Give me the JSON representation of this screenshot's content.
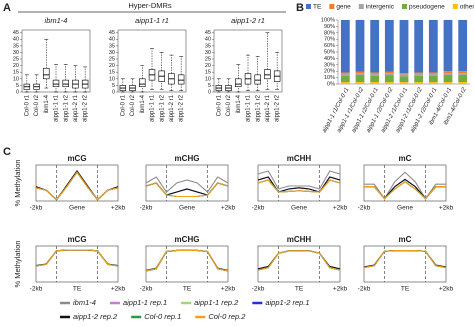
{
  "figure": {
    "panel_labels": [
      "A",
      "B",
      "C"
    ],
    "header": "Hyper-DMRs"
  },
  "line_legend": [
    {
      "name": "ibm1-4",
      "color": "#8c8c8c"
    },
    {
      "name": "aipp1-1 rep.1",
      "color": "#c77dcf"
    },
    {
      "name": "aipp1-1 rep.2",
      "color": "#9bd67a"
    },
    {
      "name": "aipp1-2 rep.1",
      "color": "#2234d0"
    },
    {
      "name": "aipp1-2 rep.2",
      "color": "#111111"
    },
    {
      "name": "Col-0 rep.1",
      "color": "#2a9a3a"
    },
    {
      "name": "Col-0 rep.2",
      "color": "#f0a020"
    }
  ],
  "chart_data": [
    {
      "type": "box",
      "title": "ibm1-4",
      "categories": [
        "Col-0 r1",
        "Col-0 r2",
        "ibm1-4",
        "aipp1-1 r1",
        "aipp1-1 r2",
        "aipp1-2 r1",
        "aipp1-2 r2"
      ],
      "values": [
        [
          0,
          2,
          4,
          6,
          13
        ],
        [
          0,
          2,
          4,
          6,
          13
        ],
        [
          3,
          10,
          13,
          18,
          40
        ],
        [
          0,
          4,
          6,
          9,
          21
        ],
        [
          0,
          4,
          6,
          9,
          21
        ],
        [
          0,
          3,
          6,
          9,
          20
        ],
        [
          0,
          3,
          6,
          9,
          19
        ]
      ],
      "ylim": [
        0,
        47
      ],
      "yticks": [
        0,
        5,
        10,
        15,
        20,
        25,
        30,
        35,
        40,
        45
      ],
      "color": "#000000"
    },
    {
      "type": "box",
      "title": "aipp1-1 r1",
      "categories": [
        "Col-0 r1",
        "Col-0 r2",
        "ibm1-4",
        "aipp1-1 r1",
        "aipp1-1 r2",
        "aipp1-2 r1",
        "aipp1-2 r2"
      ],
      "values": [
        [
          0,
          1,
          3,
          5,
          10
        ],
        [
          0,
          1,
          3,
          5,
          10
        ],
        [
          0,
          4,
          6,
          10,
          20
        ],
        [
          2,
          9,
          13,
          17,
          33
        ],
        [
          2,
          8,
          12,
          16,
          30
        ],
        [
          1,
          6,
          10,
          14,
          28
        ],
        [
          1,
          6,
          9,
          13,
          27
        ]
      ],
      "ylim": [
        0,
        47
      ],
      "yticks": [
        0,
        5,
        10,
        15,
        20,
        25,
        30,
        35,
        40,
        45
      ],
      "color": "#000000"
    },
    {
      "type": "box",
      "title": "aipp1-2 r1",
      "categories": [
        "Col-0 r1",
        "Col-0 r2",
        "ibm1-4",
        "aipp1-1 r1",
        "aipp1-1 r2",
        "aipp1-2 r1",
        "aipp1-2 r2"
      ],
      "values": [
        [
          0,
          1,
          3,
          5,
          10
        ],
        [
          0,
          1,
          3,
          5,
          10
        ],
        [
          0,
          4,
          6,
          10,
          21
        ],
        [
          1,
          6,
          10,
          14,
          28
        ],
        [
          1,
          6,
          9,
          13,
          27
        ],
        [
          2,
          10,
          13,
          17,
          45
        ],
        [
          2,
          8,
          12,
          16,
          30
        ]
      ],
      "ylim": [
        0,
        47
      ],
      "yticks": [
        0,
        5,
        10,
        15,
        20,
        25,
        30,
        35,
        40,
        45
      ],
      "color": "#000000"
    },
    {
      "type": "bar",
      "stacked": true,
      "legend": "top",
      "categories": [
        "aipp1-1 r1/Col-0 r1",
        "aipp1-1 r1/Col-0 r2",
        "aipp1-1 r2/Col-0 r1",
        "aipp1-1 r2/Col-0 r2",
        "aipp1-2 r1/Col-0 r1",
        "aipp1-2 r1/Col-0 r2",
        "aipp1-2 r2/Col-0 r1",
        "ibm1-4/Col-0 r1",
        "ibm1-4/Col-0 r2"
      ],
      "series": [
        {
          "name": "TE",
          "color": "#4472c4",
          "values": [
            82,
            81,
            82,
            81,
            83,
            82,
            82,
            80,
            80
          ]
        },
        {
          "name": "gene",
          "color": "#ed7d31",
          "values": [
            2,
            2,
            2,
            2,
            2,
            2,
            2,
            3,
            3
          ]
        },
        {
          "name": "intergenic",
          "color": "#a5a5a5",
          "values": [
            3,
            3,
            3,
            3,
            3,
            3,
            3,
            3,
            3
          ]
        },
        {
          "name": "pseudogene",
          "color": "#70ad47",
          "values": [
            10,
            11,
            10,
            11,
            9,
            10,
            10,
            11,
            11
          ]
        },
        {
          "name": "other",
          "color": "#ffc000",
          "values": [
            3,
            3,
            3,
            3,
            3,
            3,
            3,
            3,
            3
          ]
        }
      ],
      "ylim": [
        0,
        100
      ],
      "yticks": [
        {
          "value": 0,
          "label": "0%"
        },
        {
          "value": 10,
          "label": "10%"
        },
        {
          "value": 20,
          "label": "20%"
        },
        {
          "value": 30,
          "label": "30%"
        },
        {
          "value": 40,
          "label": "40%"
        },
        {
          "value": 50,
          "label": "50%"
        },
        {
          "value": 60,
          "label": "60%"
        },
        {
          "value": 70,
          "label": "70%"
        },
        {
          "value": 80,
          "label": "80%"
        },
        {
          "value": 90,
          "label": "90%"
        },
        {
          "value": 100,
          "label": "100%"
        }
      ]
    },
    {
      "type": "line",
      "title": "mCG",
      "ylabel": "% Methylation",
      "categories": [
        "-2kb",
        null,
        null,
        null,
        "Gene",
        null,
        null,
        null,
        "+2kb"
      ],
      "ylim": [
        0,
        30
      ],
      "series": [
        {
          "values": [
            11,
            9,
            1,
            13,
            25,
            13,
            1,
            9,
            11
          ]
        },
        {
          "values": [
            11,
            9,
            1,
            12,
            24,
            12,
            1,
            9,
            11
          ]
        },
        {
          "values": [
            11,
            9,
            1,
            12,
            24,
            12,
            1,
            9,
            11
          ]
        },
        {
          "values": [
            11,
            9,
            1,
            12,
            24,
            12,
            1,
            9,
            11
          ]
        },
        {
          "values": [
            12,
            9,
            1,
            13,
            25,
            13,
            1,
            9,
            12
          ]
        },
        {
          "values": [
            11,
            9,
            1,
            12,
            24,
            12,
            1,
            9,
            11
          ]
        },
        {
          "values": [
            11,
            9,
            1,
            12,
            24,
            12,
            1,
            9,
            11
          ]
        }
      ]
    },
    {
      "type": "line",
      "title": "mCHG",
      "categories": [
        "-2kb",
        null,
        null,
        null,
        "Gene",
        null,
        null,
        null,
        "+2kb"
      ],
      "ylim": [
        0,
        12
      ],
      "series": [
        {
          "values": [
            6,
            8,
            3,
            6,
            7,
            6,
            3,
            8,
            6
          ]
        },
        {
          "values": [
            5,
            6,
            2,
            1.5,
            1.5,
            1.5,
            2,
            6,
            5
          ]
        },
        {
          "values": [
            5,
            6,
            2,
            1.5,
            1.5,
            1.5,
            2,
            6,
            5
          ]
        },
        {
          "values": [
            5,
            6,
            2,
            3,
            4,
            3,
            2,
            6,
            5
          ]
        },
        {
          "values": [
            5,
            6,
            2,
            3,
            4,
            3,
            2,
            6,
            5
          ]
        },
        {
          "values": [
            5,
            6,
            2,
            1.5,
            1.5,
            1.5,
            2,
            6,
            5
          ]
        },
        {
          "values": [
            5,
            6,
            2,
            1.5,
            1.5,
            1.5,
            2,
            6,
            5
          ]
        }
      ]
    },
    {
      "type": "line",
      "title": "mCHH",
      "categories": [
        "-2kb",
        null,
        null,
        null,
        "Gene",
        null,
        null,
        null,
        "+2kb"
      ],
      "ylim": [
        0,
        6
      ],
      "series": [
        {
          "values": [
            4.5,
            5,
            2,
            2.5,
            2.5,
            2.5,
            2,
            5,
            4.5
          ]
        },
        {
          "values": [
            3,
            3.5,
            1.5,
            1.6,
            1.7,
            1.6,
            1.5,
            3.5,
            3
          ]
        },
        {
          "values": [
            3,
            3.5,
            1.5,
            1.6,
            1.7,
            1.6,
            1.5,
            3.5,
            3
          ]
        },
        {
          "values": [
            3.5,
            4,
            1.5,
            2,
            2.2,
            2,
            1.5,
            4,
            3.5
          ]
        },
        {
          "values": [
            3.5,
            4,
            1.5,
            2,
            2.2,
            2,
            1.5,
            4,
            3.5
          ]
        },
        {
          "values": [
            3,
            3.5,
            1.5,
            1.6,
            1.7,
            1.6,
            1.5,
            3.5,
            3
          ]
        },
        {
          "values": [
            3,
            3.5,
            1.5,
            1.6,
            1.7,
            1.6,
            1.5,
            3.5,
            3
          ]
        }
      ]
    },
    {
      "type": "line",
      "title": "mC",
      "categories": [
        "-2kb",
        null,
        null,
        null,
        "Gene",
        null,
        null,
        null,
        "+2kb"
      ],
      "ylim": [
        0,
        15
      ],
      "series": [
        {
          "values": [
            7,
            7,
            1,
            8,
            12,
            8,
            1,
            7,
            7
          ]
        },
        {
          "values": [
            6,
            6,
            1,
            5,
            8,
            5,
            1,
            6,
            6
          ]
        },
        {
          "values": [
            6,
            6,
            1,
            5,
            8,
            5,
            1,
            6,
            6
          ]
        },
        {
          "values": [
            6,
            6,
            1,
            6,
            9,
            6,
            1,
            6,
            6
          ]
        },
        {
          "values": [
            6,
            6,
            1,
            6,
            9,
            6,
            1,
            6,
            6
          ]
        },
        {
          "values": [
            6,
            6,
            1,
            5,
            8,
            5,
            1,
            6,
            6
          ]
        },
        {
          "values": [
            6,
            6,
            1,
            5,
            8,
            5,
            1,
            6,
            6
          ]
        }
      ]
    },
    {
      "type": "line",
      "title": "mCG",
      "ylabel": "% Methylation",
      "categories": [
        "-2kb",
        null,
        null,
        null,
        "TE",
        null,
        null,
        null,
        "+2kb"
      ],
      "ylim": [
        0,
        90
      ],
      "series": [
        {
          "values": [
            40,
            44,
            78,
            79,
            79,
            79,
            78,
            44,
            40
          ]
        },
        {
          "values": [
            40,
            44,
            78,
            80,
            80,
            80,
            78,
            44,
            40
          ]
        },
        {
          "values": [
            40,
            44,
            78,
            80,
            80,
            80,
            78,
            44,
            40
          ]
        },
        {
          "values": [
            40,
            44,
            78,
            80,
            80,
            80,
            78,
            44,
            40
          ]
        },
        {
          "values": [
            41,
            45,
            78,
            80,
            80,
            80,
            78,
            45,
            41
          ]
        },
        {
          "values": [
            40,
            44,
            78,
            80,
            80,
            80,
            78,
            44,
            40
          ]
        },
        {
          "values": [
            40,
            44,
            78,
            80,
            80,
            80,
            78,
            44,
            40
          ]
        }
      ]
    },
    {
      "type": "line",
      "title": "mCHG",
      "categories": [
        "-2kb",
        null,
        null,
        null,
        "TE",
        null,
        null,
        null,
        "+2kb"
      ],
      "ylim": [
        0,
        65
      ],
      "series": [
        {
          "values": [
            20,
            24,
            55,
            57,
            57,
            57,
            55,
            24,
            20
          ]
        },
        {
          "values": [
            20,
            24,
            55,
            57,
            57,
            57,
            55,
            24,
            20
          ]
        },
        {
          "values": [
            20,
            24,
            55,
            57,
            57,
            57,
            55,
            24,
            20
          ]
        },
        {
          "values": [
            20,
            24,
            55,
            57,
            57,
            57,
            55,
            24,
            20
          ]
        },
        {
          "values": [
            21,
            25,
            55,
            57,
            57,
            57,
            55,
            25,
            21
          ]
        },
        {
          "values": [
            20,
            24,
            55,
            57,
            57,
            57,
            55,
            24,
            20
          ]
        },
        {
          "values": [
            20,
            24,
            55,
            57,
            57,
            57,
            55,
            24,
            20
          ]
        }
      ]
    },
    {
      "type": "line",
      "title": "mCHH",
      "categories": [
        "-2kb",
        null,
        null,
        null,
        "TE",
        null,
        null,
        null,
        "+2kb"
      ],
      "ylim": [
        0,
        15
      ],
      "series": [
        {
          "values": [
            5,
            6,
            12,
            13,
            13,
            13,
            12,
            6,
            5
          ]
        },
        {
          "values": [
            5,
            6,
            12,
            13,
            13,
            13,
            12,
            6,
            5
          ]
        },
        {
          "values": [
            5,
            6,
            12,
            13,
            13,
            13,
            12,
            6,
            5
          ]
        },
        {
          "values": [
            5,
            6,
            12,
            13,
            13,
            13,
            12,
            6,
            5
          ]
        },
        {
          "values": [
            5.5,
            6.5,
            12,
            13,
            13,
            13,
            12,
            6.5,
            5.5
          ]
        },
        {
          "values": [
            5,
            6,
            12,
            13,
            13,
            13,
            12,
            6,
            5
          ]
        },
        {
          "values": [
            5,
            6,
            12,
            13,
            13,
            13,
            12,
            6,
            5
          ]
        }
      ]
    },
    {
      "type": "line",
      "title": "mC",
      "categories": [
        "-2kb",
        null,
        null,
        null,
        "TE",
        null,
        null,
        null,
        "+2kb"
      ],
      "ylim": [
        0,
        55
      ],
      "series": [
        {
          "values": [
            22,
            25,
            47,
            48,
            48,
            48,
            47,
            25,
            22
          ]
        },
        {
          "values": [
            22,
            25,
            47,
            48,
            48,
            48,
            47,
            25,
            22
          ]
        },
        {
          "values": [
            22,
            25,
            47,
            48,
            48,
            48,
            47,
            25,
            22
          ]
        },
        {
          "values": [
            22,
            25,
            47,
            48,
            48,
            48,
            47,
            25,
            22
          ]
        },
        {
          "values": [
            23,
            26,
            47,
            48,
            48,
            48,
            47,
            26,
            23
          ]
        },
        {
          "values": [
            22,
            25,
            47,
            48,
            48,
            48,
            47,
            25,
            22
          ]
        },
        {
          "values": [
            22,
            25,
            47,
            48,
            48,
            48,
            47,
            25,
            22
          ]
        }
      ]
    }
  ]
}
